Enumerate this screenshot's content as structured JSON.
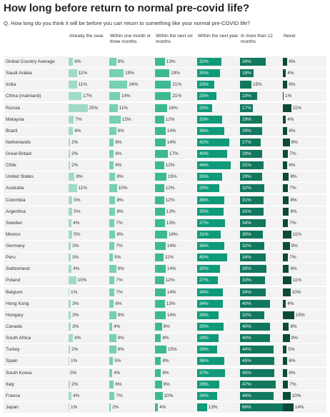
{
  "title": "How long before return to normal pre-covid life?",
  "subtitle": "Q. How long do you think it will be before you can return to something like your normal pre-COVID life?",
  "chart_data": {
    "type": "table",
    "columns": [
      {
        "label": "Already the case",
        "color": "#9fdbc6"
      },
      {
        "label": "Within one month or three months",
        "color": "#74d1b2"
      },
      {
        "label": "Within the next six months",
        "color": "#3cb993"
      },
      {
        "label": "Within the next year",
        "color": "#0f9a79"
      },
      {
        "label": "In more than 12 months",
        "color": "#11785e"
      },
      {
        "label": "Never",
        "color": "#0b4a39"
      }
    ],
    "rows": [
      {
        "country": "Global Country Average",
        "values": [
          6,
          9,
          13,
          32,
          34,
          6
        ]
      },
      {
        "country": "Saudi Arabia",
        "values": [
          11,
          19,
          19,
          30,
          18,
          4
        ]
      },
      {
        "country": "India",
        "values": [
          11,
          24,
          21,
          23,
          15,
          6
        ]
      },
      {
        "country": "China (mainland)",
        "values": [
          17,
          14,
          21,
          25,
          23,
          1
        ]
      },
      {
        "country": "Russia",
        "values": [
          25,
          11,
          16,
          20,
          17,
          11
        ]
      },
      {
        "country": "Malaysia",
        "values": [
          7,
          15,
          12,
          33,
          29,
          4
        ]
      },
      {
        "country": "Brazil",
        "values": [
          6,
          9,
          14,
          36,
          29,
          6
        ]
      },
      {
        "country": "Netherlands",
        "values": [
          2,
          6,
          14,
          42,
          27,
          9
        ]
      },
      {
        "country": "Great Britain",
        "values": [
          2,
          6,
          17,
          40,
          29,
          7
        ]
      },
      {
        "country": "Chile",
        "values": [
          2,
          6,
          12,
          44,
          31,
          6
        ]
      },
      {
        "country": "United States",
        "values": [
          8,
          8,
          15,
          33,
          29,
          8
        ]
      },
      {
        "country": "Australia",
        "values": [
          11,
          10,
          12,
          29,
          32,
          7
        ]
      },
      {
        "country": "Colombia",
        "values": [
          5,
          8,
          12,
          36,
          31,
          8
        ]
      },
      {
        "country": "Argentina",
        "values": [
          5,
          8,
          13,
          35,
          31,
          8
        ]
      },
      {
        "country": "Sweden",
        "values": [
          4,
          7,
          13,
          37,
          34,
          7
        ]
      },
      {
        "country": "Mexico",
        "values": [
          5,
          8,
          16,
          31,
          30,
          11
        ]
      },
      {
        "country": "Germany",
        "values": [
          3,
          7,
          14,
          36,
          32,
          9
        ]
      },
      {
        "country": "Peru",
        "values": [
          3,
          5,
          11,
          40,
          34,
          7
        ]
      },
      {
        "country": "Switzerland",
        "values": [
          4,
          9,
          14,
          30,
          35,
          8
        ]
      },
      {
        "country": "Poland",
        "values": [
          10,
          7,
          12,
          27,
          33,
          11
        ]
      },
      {
        "country": "Belgium",
        "values": [
          1,
          7,
          14,
          34,
          34,
          10
        ]
      },
      {
        "country": "Hong Kong",
        "values": [
          3,
          6,
          13,
          34,
          40,
          4
        ]
      },
      {
        "country": "Hungary",
        "values": [
          3,
          9,
          14,
          28,
          32,
          15
        ]
      },
      {
        "country": "Canada",
        "values": [
          3,
          4,
          9,
          35,
          40,
          8
        ]
      },
      {
        "country": "South Africa",
        "values": [
          6,
          9,
          8,
          28,
          40,
          9
        ]
      },
      {
        "country": "Turkey",
        "values": [
          2,
          9,
          15,
          26,
          44,
          5
        ]
      },
      {
        "country": "Spain",
        "values": [
          1,
          5,
          8,
          36,
          45,
          6
        ]
      },
      {
        "country": "South Korea",
        "values": [
          0,
          4,
          8,
          37,
          45,
          6
        ]
      },
      {
        "country": "Italy",
        "values": [
          2,
          6,
          9,
          29,
          47,
          7
        ]
      },
      {
        "country": "France",
        "values": [
          4,
          7,
          10,
          26,
          44,
          10
        ]
      },
      {
        "country": "Japan",
        "values": [
          1,
          2,
          4,
          13,
          66,
          14
        ]
      }
    ],
    "value_suffix": "%"
  }
}
